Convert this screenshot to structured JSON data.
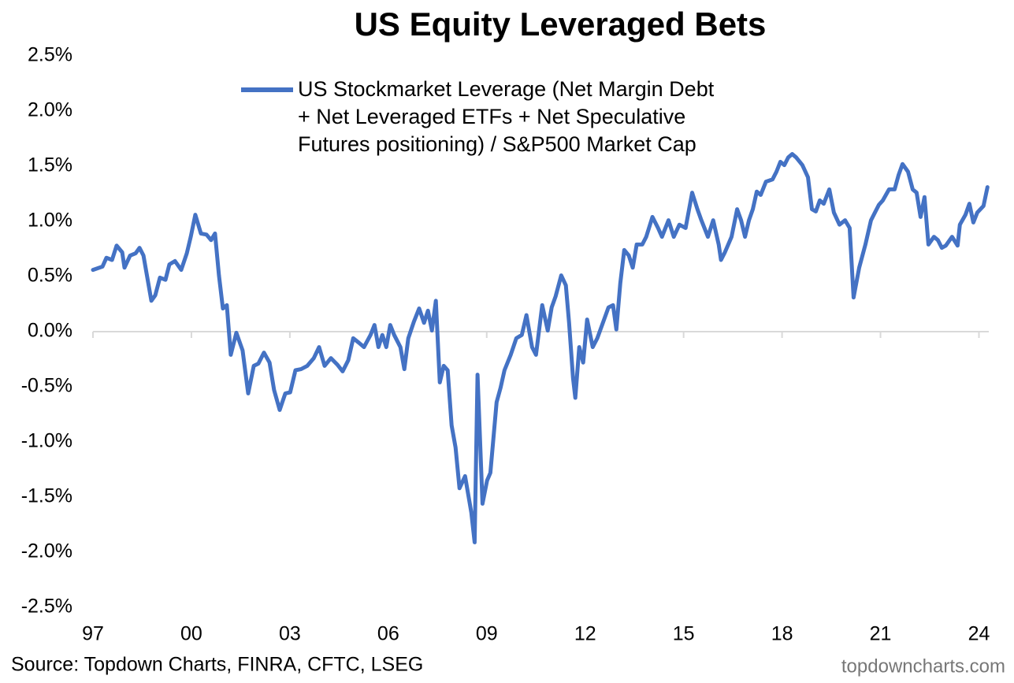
{
  "chart_data": {
    "type": "line",
    "title": "US Equity Leveraged Bets",
    "source": "Source: Topdown Charts, FINRA, CFTC, LSEG",
    "watermark": "topdowncharts.com",
    "legend": "top-left",
    "grid": false,
    "xlim": [
      1997,
      2024.3
    ],
    "xticks": [
      {
        "value": 1997,
        "label": "97"
      },
      {
        "value": 2000,
        "label": "00"
      },
      {
        "value": 2003,
        "label": "03"
      },
      {
        "value": 2006,
        "label": "06"
      },
      {
        "value": 2009,
        "label": "09"
      },
      {
        "value": 2012,
        "label": "12"
      },
      {
        "value": 2015,
        "label": "15"
      },
      {
        "value": 2018,
        "label": "18"
      },
      {
        "value": 2021,
        "label": "21"
      },
      {
        "value": 2024,
        "label": "24"
      }
    ],
    "ylim": [
      -2.5,
      2.5
    ],
    "yticks": [
      {
        "value": 2.5,
        "label": "2.5%"
      },
      {
        "value": 2.0,
        "label": "2.0%"
      },
      {
        "value": 1.5,
        "label": "1.5%"
      },
      {
        "value": 1.0,
        "label": "1.0%"
      },
      {
        "value": 0.5,
        "label": "0.5%"
      },
      {
        "value": 0,
        "label": "0.0%"
      },
      {
        "value": -0.5,
        "label": "-0.5%"
      },
      {
        "value": -1.0,
        "label": "-1.0%"
      },
      {
        "value": -1.5,
        "label": "-1.5%"
      },
      {
        "value": -2.0,
        "label": "-2.0%"
      },
      {
        "value": -2.5,
        "label": "-2.5%"
      }
    ],
    "x": [
      1997.0,
      1997.29,
      1997.41,
      1997.58,
      1997.72,
      1997.89,
      1997.96,
      1998.13,
      1998.3,
      1998.42,
      1998.54,
      1998.78,
      1998.9,
      1999.04,
      1999.21,
      1999.33,
      1999.5,
      1999.69,
      1999.86,
      1999.98,
      2000.12,
      2000.29,
      2000.46,
      2000.6,
      2000.72,
      2000.84,
      2000.96,
      2001.08,
      2001.2,
      2001.37,
      2001.56,
      2001.73,
      2001.9,
      2002.04,
      2002.21,
      2002.38,
      2002.52,
      2002.69,
      2002.86,
      2003.01,
      2003.17,
      2003.34,
      2003.53,
      2003.73,
      2003.89,
      2004.06,
      2004.25,
      2004.45,
      2004.61,
      2004.78,
      2004.93,
      2005.1,
      2005.26,
      2005.46,
      2005.58,
      2005.7,
      2005.82,
      2005.94,
      2006.06,
      2006.18,
      2006.37,
      2006.49,
      2006.61,
      2006.78,
      2006.94,
      2007.09,
      2007.21,
      2007.33,
      2007.45,
      2007.57,
      2007.69,
      2007.81,
      2007.93,
      2008.05,
      2008.17,
      2008.34,
      2008.53,
      2008.63,
      2008.72,
      2008.87,
      2009.01,
      2009.11,
      2009.3,
      2009.42,
      2009.54,
      2009.73,
      2009.9,
      2010.07,
      2010.21,
      2010.38,
      2010.5,
      2010.69,
      2010.86,
      2010.98,
      2011.1,
      2011.27,
      2011.41,
      2011.51,
      2011.63,
      2011.7,
      2011.82,
      2011.94,
      2012.06,
      2012.23,
      2012.37,
      2012.54,
      2012.71,
      2012.85,
      2012.95,
      2013.07,
      2013.19,
      2013.33,
      2013.45,
      2013.57,
      2013.74,
      2013.86,
      2014.05,
      2014.22,
      2014.34,
      2014.54,
      2014.7,
      2014.87,
      2015.06,
      2015.26,
      2015.42,
      2015.54,
      2015.74,
      2015.9,
      2016.07,
      2016.14,
      2016.26,
      2016.46,
      2016.63,
      2016.75,
      2016.87,
      2016.99,
      2017.11,
      2017.23,
      2017.35,
      2017.51,
      2017.71,
      2017.83,
      2017.95,
      2018.07,
      2018.19,
      2018.31,
      2018.43,
      2018.62,
      2018.79,
      2018.91,
      2019.03,
      2019.15,
      2019.27,
      2019.44,
      2019.58,
      2019.75,
      2019.92,
      2020.06,
      2020.18,
      2020.35,
      2020.54,
      2020.71,
      2020.83,
      2020.95,
      2021.07,
      2021.26,
      2021.43,
      2021.55,
      2021.67,
      2021.84,
      2021.98,
      2022.1,
      2022.22,
      2022.34,
      2022.46,
      2022.63,
      2022.75,
      2022.87,
      2022.99,
      2023.18,
      2023.35,
      2023.42,
      2023.59,
      2023.71,
      2023.83,
      2023.95,
      2024.14,
      2024.26
    ],
    "series": [
      {
        "name": "US Stockmarket Leverage (Net Margin Debt + Net Leveraged ETFs + Net Speculative Futures positioning) / S&P500 Market Cap",
        "color": "#4472c4",
        "values": [
          0.56,
          0.59,
          0.67,
          0.65,
          0.78,
          0.72,
          0.58,
          0.69,
          0.71,
          0.76,
          0.69,
          0.28,
          0.33,
          0.49,
          0.47,
          0.61,
          0.64,
          0.56,
          0.71,
          0.86,
          1.06,
          0.89,
          0.88,
          0.83,
          0.89,
          0.51,
          0.21,
          0.24,
          -0.21,
          -0.01,
          -0.17,
          -0.56,
          -0.31,
          -0.29,
          -0.19,
          -0.28,
          -0.53,
          -0.71,
          -0.56,
          -0.55,
          -0.35,
          -0.34,
          -0.31,
          -0.24,
          -0.14,
          -0.31,
          -0.24,
          -0.3,
          -0.36,
          -0.26,
          -0.06,
          -0.1,
          -0.14,
          -0.03,
          0.06,
          -0.14,
          -0.03,
          -0.14,
          0.06,
          -0.03,
          -0.14,
          -0.34,
          -0.06,
          0.09,
          0.21,
          0.08,
          0.19,
          0.01,
          0.28,
          -0.46,
          -0.31,
          -0.35,
          -0.85,
          -1.05,
          -1.42,
          -1.31,
          -1.64,
          -1.91,
          -0.39,
          -1.56,
          -1.35,
          -1.28,
          -0.64,
          -0.51,
          -0.35,
          -0.21,
          -0.06,
          -0.03,
          0.15,
          -0.14,
          -0.21,
          0.24,
          0.01,
          0.22,
          0.32,
          0.51,
          0.42,
          0.08,
          -0.42,
          -0.6,
          -0.14,
          -0.28,
          0.11,
          -0.14,
          -0.06,
          0.08,
          0.22,
          0.24,
          0.02,
          0.44,
          0.74,
          0.69,
          0.58,
          0.79,
          0.79,
          0.86,
          1.04,
          0.94,
          0.86,
          1.01,
          0.86,
          0.97,
          0.94,
          1.26,
          1.11,
          1.01,
          0.86,
          1.01,
          0.79,
          0.65,
          0.72,
          0.86,
          1.11,
          1.01,
          0.86,
          1.01,
          1.11,
          1.27,
          1.24,
          1.36,
          1.38,
          1.45,
          1.54,
          1.51,
          1.58,
          1.61,
          1.58,
          1.51,
          1.4,
          1.11,
          1.09,
          1.19,
          1.16,
          1.29,
          1.08,
          0.97,
          1.01,
          0.94,
          0.31,
          0.58,
          0.79,
          1.01,
          1.08,
          1.15,
          1.19,
          1.29,
          1.29,
          1.42,
          1.52,
          1.45,
          1.29,
          1.26,
          1.04,
          1.22,
          0.79,
          0.86,
          0.83,
          0.76,
          0.78,
          0.86,
          0.78,
          0.97,
          1.06,
          1.16,
          0.99,
          1.08,
          1.14,
          1.31
        ]
      }
    ]
  }
}
